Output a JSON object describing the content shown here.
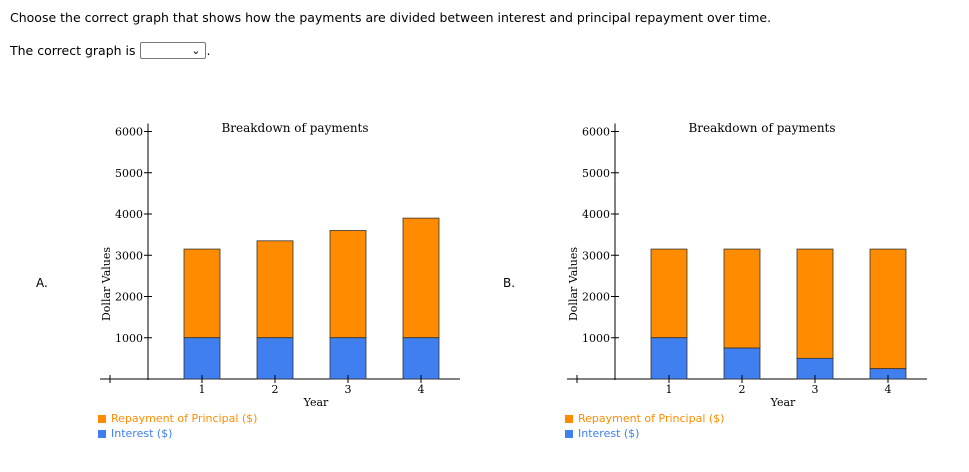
{
  "question": {
    "prompt": "Choose the correct graph that shows how the payments are divided between interest and principal repayment over time.",
    "answer_prefix": "The correct graph is",
    "answer_suffix": ".",
    "dropdown_value": ""
  },
  "colors": {
    "principal": "#ff8c00",
    "interest": "#3f7fef"
  },
  "options": [
    {
      "label": "A.",
      "chart_data": {
        "type": "bar",
        "stacked": true,
        "title": "Breakdown of payments",
        "xlabel": "Year",
        "ylabel": "Dollar Values",
        "ylim": [
          0,
          6000
        ],
        "yticks": [
          "1000",
          "2000",
          "3000",
          "4000",
          "5000",
          "6000"
        ],
        "categories": [
          "1",
          "2",
          "3",
          "4"
        ],
        "series": [
          {
            "name": "Interest ($)",
            "values": [
              1000,
              1000,
              1000,
              1000
            ]
          },
          {
            "name": "Repayment of Principal ($)",
            "values": [
              2150,
              2350,
              2600,
              2900
            ]
          }
        ]
      }
    },
    {
      "label": "B.",
      "chart_data": {
        "type": "bar",
        "stacked": true,
        "title": "Breakdown of payments",
        "xlabel": "Year",
        "ylabel": "Dollar Values",
        "ylim": [
          0,
          6000
        ],
        "yticks": [
          "1000",
          "2000",
          "3000",
          "4000",
          "5000",
          "6000"
        ],
        "categories": [
          "1",
          "2",
          "3",
          "4"
        ],
        "series": [
          {
            "name": "Interest ($)",
            "values": [
              1000,
              750,
              500,
              250
            ]
          },
          {
            "name": "Repayment of Principal ($)",
            "values": [
              2150,
              2400,
              2650,
              2900
            ]
          }
        ]
      }
    }
  ],
  "legend": {
    "principal": "Repayment of Principal ($)",
    "interest": "Interest ($)"
  }
}
